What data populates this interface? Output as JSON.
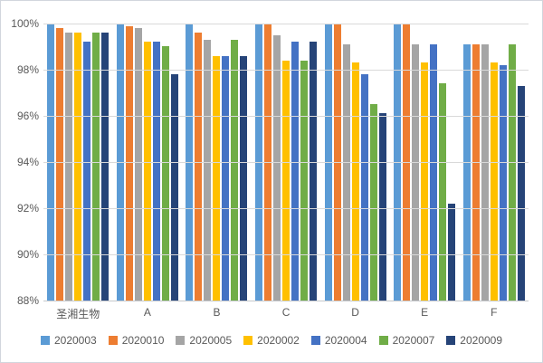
{
  "chart": {
    "background": "#ffffff",
    "frame_border_color": "#d2d6dd",
    "grid_color": "#d9d9d9",
    "axis_line_color": "#c6c9cc",
    "text_color": "#595959"
  },
  "chart_data": {
    "type": "bar",
    "title": "",
    "xlabel": "",
    "ylabel": "",
    "grid": true,
    "legend_position": "bottom",
    "ylim": [
      88,
      100
    ],
    "y_ticks": [
      {
        "label": "100%",
        "value": 100
      },
      {
        "label": "98%",
        "value": 98
      },
      {
        "label": "96%",
        "value": 96
      },
      {
        "label": "94%",
        "value": 94
      },
      {
        "label": "92%",
        "value": 92
      },
      {
        "label": "90%",
        "value": 90
      },
      {
        "label": "88%",
        "value": 88
      }
    ],
    "categories": [
      "圣湘生物",
      "A",
      "B",
      "C",
      "D",
      "E",
      "F"
    ],
    "series": [
      {
        "name": "2020003",
        "color": "#5B9BD5",
        "values": [
          100,
          100,
          100,
          100,
          100,
          100,
          99.1
        ]
      },
      {
        "name": "2020010",
        "color": "#ED7D31",
        "values": [
          99.8,
          99.9,
          99.6,
          100,
          100,
          100,
          99.1
        ]
      },
      {
        "name": "2020005",
        "color": "#A5A5A5",
        "values": [
          99.6,
          99.8,
          99.3,
          99.5,
          99.1,
          99.1,
          99.1
        ]
      },
      {
        "name": "2020002",
        "color": "#FFC000",
        "values": [
          99.6,
          99.2,
          98.6,
          98.4,
          98.3,
          98.3,
          98.3
        ]
      },
      {
        "name": "2020004",
        "color": "#4472C4",
        "values": [
          99.2,
          99.2,
          98.6,
          99.2,
          97.8,
          99.1,
          98.2
        ]
      },
      {
        "name": "2020007",
        "color": "#70AD47",
        "values": [
          99.6,
          99.0,
          99.3,
          98.4,
          96.5,
          97.4,
          99.1
        ]
      },
      {
        "name": "2020009",
        "color": "#264478",
        "values": [
          99.6,
          97.8,
          98.6,
          99.2,
          96.1,
          92.2,
          97.3
        ]
      }
    ]
  }
}
